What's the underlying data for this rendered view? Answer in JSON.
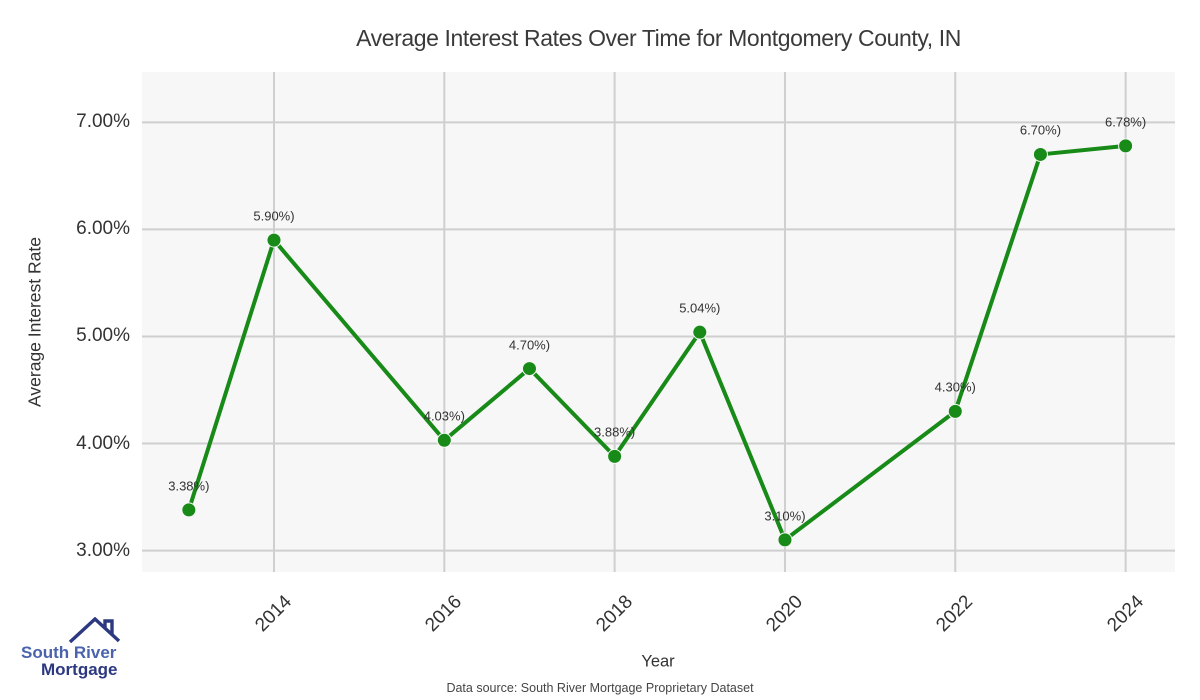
{
  "chart_data": {
    "type": "line",
    "title": "Average Interest Rates Over Time for Montgomery County, IN",
    "xlabel": "Year",
    "ylabel": "Average Interest Rate",
    "source_note": "Data source: South River Mortgage Proprietary Dataset",
    "grid": true,
    "legend": "none",
    "xlim": [
      2012.45,
      2024.58
    ],
    "ylim": [
      2.8,
      7.47
    ],
    "x_ticks": [
      {
        "value": 2014,
        "label": "2014"
      },
      {
        "value": 2016,
        "label": "2016"
      },
      {
        "value": 2018,
        "label": "2018"
      },
      {
        "value": 2020,
        "label": "2020"
      },
      {
        "value": 2022,
        "label": "2022"
      },
      {
        "value": 2024,
        "label": "2024"
      }
    ],
    "y_ticks": [
      {
        "value": 7.0,
        "label": "7.00%"
      },
      {
        "value": 6.0,
        "label": "6.00%"
      },
      {
        "value": 5.0,
        "label": "5.00%"
      },
      {
        "value": 4.0,
        "label": "4.00%"
      },
      {
        "value": 3.0,
        "label": "3.00%"
      }
    ],
    "series": [
      {
        "name": "Average Interest Rate",
        "points": [
          {
            "year": 2013,
            "value": 3.38,
            "label": "3.38%)"
          },
          {
            "year": 2014,
            "value": 5.9,
            "label": "5.90%)"
          },
          {
            "year": 2016,
            "value": 4.03,
            "label": "4.03%)"
          },
          {
            "year": 2017,
            "value": 4.7,
            "label": "4.70%)"
          },
          {
            "year": 2018,
            "value": 3.88,
            "label": "3.88%)"
          },
          {
            "year": 2019,
            "value": 5.04,
            "label": "5.04%)"
          },
          {
            "year": 2020,
            "value": 3.1,
            "label": "3.10%)"
          },
          {
            "year": 2022,
            "value": 4.3,
            "label": "4.30%)"
          },
          {
            "year": 2023,
            "value": 6.7,
            "label": "6.70%)"
          },
          {
            "year": 2024,
            "value": 6.78,
            "label": "6.78%)"
          }
        ]
      }
    ],
    "colors": {
      "line": "#178a17",
      "marker": "#178a17",
      "plot_background": "#f7f7f7",
      "gridline": "#cfcfcf",
      "title_text": "#3a3a3a",
      "tick_text": "#333333"
    }
  },
  "logo": {
    "line1": "South River",
    "line2": "Mortgage",
    "line1_color": "#4a63ac",
    "line2_color": "#2c3880",
    "icon_color": "#2c3880"
  }
}
